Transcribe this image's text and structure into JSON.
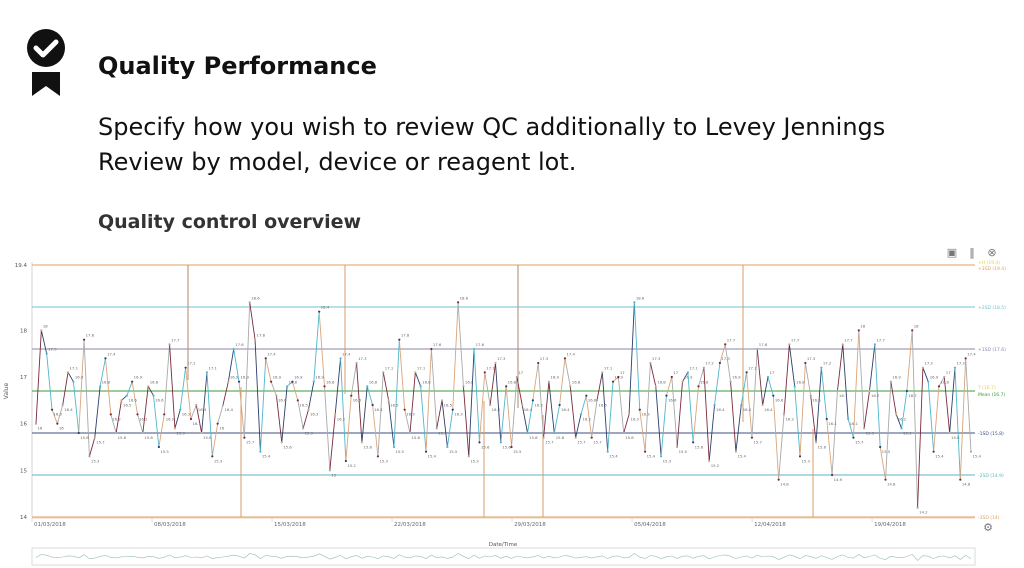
{
  "slide": {
    "title": "Quality Performance",
    "subtitle": "Specify how you wish to review QC additionally to Levey Jennings Review by model, device or reagent lot.",
    "section_title": "Quality control overview",
    "badge_icon": "award-check-icon"
  },
  "toolbar": {
    "icons": [
      "camera-icon",
      "columns-icon",
      "close-icon"
    ],
    "settings_icon": "gear-icon"
  },
  "chart_data": {
    "type": "line",
    "title": "",
    "xlabel": "Date/Time",
    "ylabel": "Value",
    "ylim": [
      14,
      19.4
    ],
    "yticks": [
      "14",
      "15",
      "16",
      "17",
      "18",
      "19.4"
    ],
    "x_tick_labels": [
      "01/03/2018",
      "08/03/2018",
      "15/03/2018",
      "22/03/2018",
      "29/03/2018",
      "05/04/2018",
      "12/04/2018",
      "19/04/2018"
    ],
    "x_range": [
      "01/03/2018",
      "25/04/2018"
    ],
    "grid": false,
    "reference_lines": [
      {
        "label": "+H (19.4)",
        "value": 19.4,
        "color": "#e6d24a"
      },
      {
        "label": "+3SD (19.4)",
        "value": 19.4,
        "color": "#e0a060"
      },
      {
        "label": "+2SD (18.5)",
        "value": 18.5,
        "color": "#6cc3d0"
      },
      {
        "label": "+1SD (17.6)",
        "value": 17.6,
        "color": "#8a86a8"
      },
      {
        "label": "T (16.7)",
        "value": 16.7,
        "color": "#e6d24a"
      },
      {
        "label": "Mean (16.7)",
        "value": 16.7,
        "color": "#3a9a3a"
      },
      {
        "label": "-1SD (15.8)",
        "value": 15.8,
        "color": "#3d4f80"
      },
      {
        "label": "-2SD (14.9)",
        "value": 14.9,
        "color": "#58b6c4"
      },
      {
        "label": "-3SD (14)",
        "value": 14,
        "color": "#e0a060"
      }
    ],
    "series_colors": [
      "#a9a9a9",
      "#4fb7cc",
      "#7a2a3a",
      "#d9a57a",
      "#2c3e6b"
    ],
    "values": [
      16,
      18,
      17.5,
      16.3,
      16,
      16.4,
      17.1,
      16.9,
      15.8,
      17.8,
      15.3,
      15.7,
      16.8,
      17.4,
      16.2,
      15.8,
      16.5,
      16.6,
      16.9,
      16.2,
      15.8,
      16.8,
      16.6,
      15.5,
      16.2,
      17.7,
      15.9,
      16.3,
      17.2,
      16.1,
      16.4,
      15.8,
      17.1,
      15.3,
      16,
      16.4,
      16.9,
      17.6,
      16.9,
      15.7,
      18.6,
      17.8,
      15.4,
      17.4,
      16.9,
      16.6,
      15.6,
      16.8,
      16.9,
      16.5,
      15.9,
      16.3,
      16.9,
      18.4,
      16.8,
      15,
      16.2,
      17.4,
      15.2,
      16.6,
      17.3,
      15.6,
      16.8,
      16.4,
      15.3,
      17.1,
      16.5,
      15.5,
      17.8,
      16.3,
      15.8,
      17.1,
      16.8,
      15.4,
      17.6,
      15.9,
      16.5,
      15.5,
      16.3,
      18.6,
      16.8,
      15.3,
      17.6,
      15.6,
      17.1,
      16.4,
      17.3,
      15.6,
      16.8,
      15.5,
      17,
      16.4,
      15.8,
      16.5,
      17.3,
      15.7,
      16.9,
      15.8,
      16.4,
      17.4,
      16.8,
      15.7,
      16.2,
      16.6,
      15.7,
      16.5,
      17.1,
      15.4,
      16.9,
      17,
      15.8,
      16.2,
      18.6,
      16.3,
      15.4,
      17.3,
      16.8,
      15.3,
      16.6,
      17,
      15.5,
      16.9,
      17.1,
      15.6,
      16.8,
      17.2,
      15.2,
      16.4,
      17.3,
      17.7,
      16.9,
      15.4,
      16.4,
      17.1,
      15.7,
      17.6,
      16.4,
      17,
      16.6,
      14.8,
      16.2,
      17.7,
      16.8,
      15.3,
      17.3,
      16.6,
      15.6,
      17.2,
      16.1,
      14.9,
      16.7,
      17.7,
      16.1,
      15.7,
      18,
      15.9,
      16.7,
      17.7,
      15.5,
      14.8,
      16.9,
      16.2,
      15.9,
      16.7,
      18,
      14.2,
      17.2,
      16.9,
      15.4,
      16.8,
      17,
      15.8,
      17.2,
      14.8,
      17.4,
      15.4
    ]
  }
}
